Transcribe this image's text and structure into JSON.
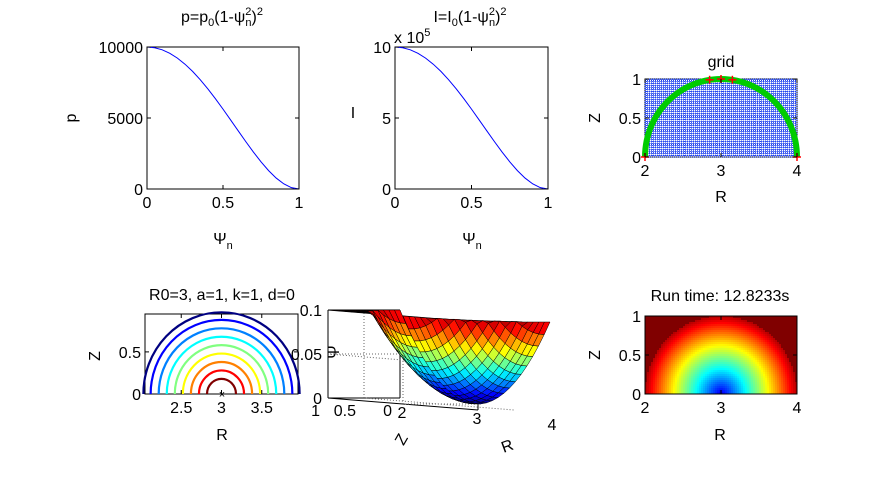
{
  "figure": {
    "background": "#ffffff",
    "axis_color": "#000000",
    "line_color": "#0000ff",
    "marker_color": "#ff0000",
    "boundary_color": "#00cc00"
  },
  "chart_data": [
    {
      "id": "pressure",
      "type": "line",
      "title_parts": [
        "p=p",
        "0",
        "(1-ψ",
        "2",
        "n",
        ")",
        "2"
      ],
      "xlabel": "Ψ",
      "xlabel_sub": "n",
      "ylabel": "p",
      "xlim": [
        0,
        1
      ],
      "ylim": [
        0,
        10000
      ],
      "xticks": [
        "0",
        "0.5",
        "1"
      ],
      "yticks": [
        "0",
        "5000",
        "10000"
      ],
      "tick_values_x": [
        0,
        0.5,
        1
      ],
      "tick_values_y": [
        0,
        5000,
        10000
      ],
      "x": [
        0,
        0.05,
        0.1,
        0.15,
        0.2,
        0.25,
        0.3,
        0.35,
        0.4,
        0.45,
        0.5,
        0.55,
        0.6,
        0.65,
        0.7,
        0.75,
        0.8,
        0.85,
        0.9,
        0.95,
        1
      ],
      "y": [
        10000,
        9950,
        9801,
        9555,
        9216,
        8789,
        8281,
        7700,
        7056,
        6360,
        5625,
        4865,
        4096,
        3335,
        2601,
        1914,
        1296,
        770,
        361,
        95,
        0
      ]
    },
    {
      "id": "current",
      "type": "line",
      "title_parts": [
        "I=I",
        "0",
        "(1-ψ",
        "2",
        "n",
        ")",
        "2"
      ],
      "xlabel": "Ψ",
      "xlabel_sub": "n",
      "ylabel": "I",
      "multiplier": "x 10",
      "multiplier_exp": "5",
      "xlim": [
        0,
        1
      ],
      "ylim": [
        0,
        10
      ],
      "xticks": [
        "0",
        "0.5",
        "1"
      ],
      "yticks": [
        "0",
        "5",
        "10"
      ],
      "tick_values_x": [
        0,
        0.5,
        1
      ],
      "tick_values_y": [
        0,
        5,
        10
      ],
      "x": [
        0,
        0.05,
        0.1,
        0.15,
        0.2,
        0.25,
        0.3,
        0.35,
        0.4,
        0.45,
        0.5,
        0.55,
        0.6,
        0.65,
        0.7,
        0.75,
        0.8,
        0.85,
        0.9,
        0.95,
        1
      ],
      "y": [
        10,
        9.95,
        9.801,
        9.555,
        9.216,
        8.789,
        8.281,
        7.7,
        7.056,
        6.36,
        5.625,
        4.865,
        4.096,
        3.335,
        2.601,
        1.914,
        1.296,
        0.77,
        0.361,
        0.095,
        0
      ]
    },
    {
      "id": "grid",
      "type": "scatter",
      "title": "grid",
      "xlabel": "R",
      "ylabel": "Z",
      "xlim": [
        2,
        4
      ],
      "ylim": [
        0,
        1
      ],
      "xticks": [
        "2",
        "3",
        "4"
      ],
      "yticks": [
        "0",
        "0.5",
        "1"
      ],
      "tick_values_x": [
        2,
        3,
        4
      ],
      "tick_values_y": [
        0,
        0.5,
        1
      ],
      "grid_spacing": 0.02,
      "boundary": "semicircle",
      "center": [
        3,
        0
      ],
      "radius": 1
    },
    {
      "id": "contours",
      "type": "contour",
      "title": "R0=3, a=1, k=1, d=0",
      "xlabel": "R",
      "ylabel": "Z",
      "xlim": [
        2.05,
        3.95
      ],
      "ylim": [
        0,
        0.95
      ],
      "xticks": [
        "2.5",
        "3",
        "3.5"
      ],
      "yticks": [
        "0",
        "0.5"
      ],
      "tick_values_x": [
        2.5,
        3,
        3.5
      ],
      "tick_values_y": [
        0,
        0.5
      ],
      "center": [
        3,
        0
      ],
      "levels": [
        0.18,
        0.28,
        0.38,
        0.48,
        0.58,
        0.68,
        0.78,
        0.88,
        0.97
      ],
      "colormap": "jet"
    },
    {
      "id": "psi_surface",
      "type": "surface",
      "zlabel": "Ψ",
      "xlabel": "R",
      "ylabel": "Z",
      "xlim": [
        2,
        4
      ],
      "ylim": [
        0,
        1
      ],
      "zlim": [
        0,
        0.1
      ],
      "xticks": [
        "2",
        "3",
        "4"
      ],
      "yticks": [
        "0",
        "0.5",
        "1"
      ],
      "zticks": [
        "0",
        "0.05",
        "0.1"
      ],
      "tick_values_x": [
        2,
        3,
        4
      ],
      "tick_values_y": [
        0,
        0.5,
        1
      ],
      "tick_values_z": [
        0,
        0.05,
        0.1
      ],
      "psi_max": 0.1,
      "colormap": "jet"
    },
    {
      "id": "psi_image",
      "type": "heatmap",
      "title": "Run time: 12.8233s",
      "xlabel": "R",
      "ylabel": "Z",
      "xlim": [
        2,
        4
      ],
      "ylim": [
        0,
        1
      ],
      "xticks": [
        "2",
        "3",
        "4"
      ],
      "yticks": [
        "0",
        "0.5",
        "1"
      ],
      "tick_values_x": [
        2,
        3,
        4
      ],
      "tick_values_y": [
        0,
        0.5,
        1
      ],
      "center": [
        3,
        0
      ],
      "colormap": "jet",
      "outside_color": "#800000"
    }
  ]
}
